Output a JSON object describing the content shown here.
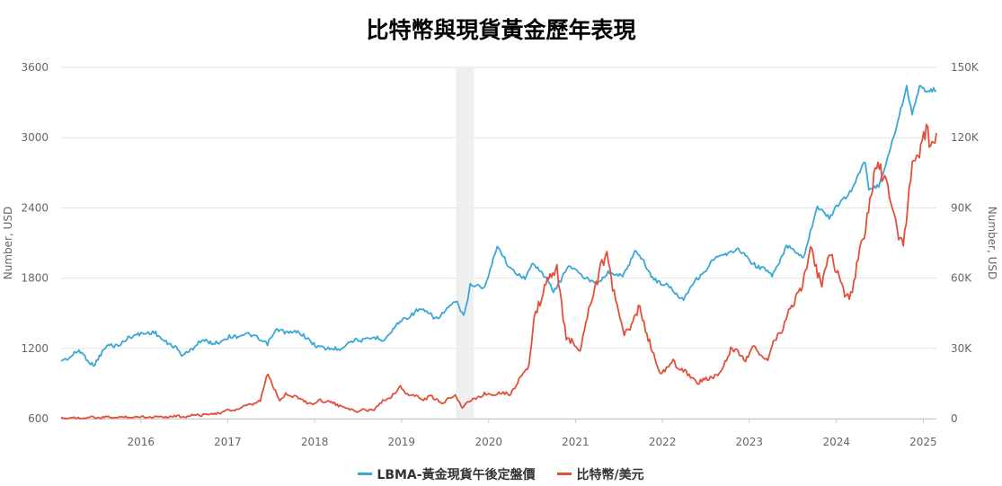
{
  "chart_data": {
    "type": "line",
    "title": "比特幣與現貨黃金歷年表現",
    "x_range": [
      "2015-08-01",
      "2025-08-25"
    ],
    "x_ticks": [
      "2016",
      "2017",
      "2018",
      "2019",
      "2020",
      "2021",
      "2022",
      "2023",
      "2024",
      "2025"
    ],
    "y_left": {
      "label": "Number, USD",
      "range": [
        600,
        3600
      ],
      "ticks": [
        "600",
        "1200",
        "1800",
        "2400",
        "3000",
        "3600"
      ]
    },
    "y_right": {
      "label": "Number, USD",
      "range": [
        0,
        150000
      ],
      "ticks": [
        "0",
        "30K",
        "60K",
        "90K",
        "120K",
        "150K"
      ]
    },
    "grid": true,
    "legend_position": "bottom",
    "shaded_period": [
      "2020-02-15",
      "2020-04-30"
    ],
    "series": [
      {
        "name": "LBMA-黃金現貨午後定盤價",
        "axis": "left",
        "color": "#3aa8d6",
        "points": [
          [
            "2015-08-01",
            1100
          ],
          [
            "2015-10-15",
            1170
          ],
          [
            "2015-12-15",
            1065
          ],
          [
            "2016-02-15",
            1220
          ],
          [
            "2016-04-15",
            1250
          ],
          [
            "2016-07-01",
            1340
          ],
          [
            "2016-09-01",
            1320
          ],
          [
            "2016-11-15",
            1220
          ],
          [
            "2016-12-20",
            1135
          ],
          [
            "2017-03-01",
            1250
          ],
          [
            "2017-06-01",
            1260
          ],
          [
            "2017-09-01",
            1330
          ],
          [
            "2017-12-15",
            1250
          ],
          [
            "2018-01-25",
            1350
          ],
          [
            "2018-04-15",
            1340
          ],
          [
            "2018-08-15",
            1185
          ],
          [
            "2018-11-01",
            1220
          ],
          [
            "2019-01-01",
            1280
          ],
          [
            "2019-04-15",
            1280
          ],
          [
            "2019-06-25",
            1420
          ],
          [
            "2019-09-01",
            1530
          ],
          [
            "2019-12-01",
            1465
          ],
          [
            "2020-02-20",
            1600
          ],
          [
            "2020-03-18",
            1480
          ],
          [
            "2020-04-15",
            1730
          ],
          [
            "2020-06-15",
            1730
          ],
          [
            "2020-08-06",
            2065
          ],
          [
            "2020-10-01",
            1890
          ],
          [
            "2020-12-01",
            1780
          ],
          [
            "2021-01-05",
            1950
          ],
          [
            "2021-03-30",
            1690
          ],
          [
            "2021-06-01",
            1900
          ],
          [
            "2021-09-30",
            1750
          ],
          [
            "2021-11-15",
            1860
          ],
          [
            "2022-01-15",
            1800
          ],
          [
            "2022-03-08",
            2050
          ],
          [
            "2022-05-15",
            1820
          ],
          [
            "2022-09-28",
            1630
          ],
          [
            "2022-11-15",
            1770
          ],
          [
            "2023-01-25",
            1940
          ],
          [
            "2023-05-04",
            2050
          ],
          [
            "2023-08-15",
            1890
          ],
          [
            "2023-10-05",
            1820
          ],
          [
            "2023-12-04",
            2070
          ],
          [
            "2024-02-14",
            1990
          ],
          [
            "2024-04-12",
            2400
          ],
          [
            "2024-06-01",
            2330
          ],
          [
            "2024-08-15",
            2500
          ],
          [
            "2024-10-30",
            2790
          ],
          [
            "2024-11-14",
            2560
          ],
          [
            "2024-12-31",
            2610
          ],
          [
            "2025-02-20",
            2950
          ],
          [
            "2025-04-22",
            3450
          ],
          [
            "2025-05-15",
            3180
          ],
          [
            "2025-06-15",
            3430
          ],
          [
            "2025-08-25",
            3400
          ]
        ]
      },
      {
        "name": "比特幣/美元",
        "axis": "right",
        "color": "#e2503a",
        "points": [
          [
            "2015-08-01",
            260
          ],
          [
            "2016-06-15",
            700
          ],
          [
            "2017-01-01",
            1000
          ],
          [
            "2017-05-25",
            2400
          ],
          [
            "2017-09-01",
            4700
          ],
          [
            "2017-11-15",
            7500
          ],
          [
            "2017-12-17",
            19500
          ],
          [
            "2018-02-05",
            7000
          ],
          [
            "2018-03-01",
            11000
          ],
          [
            "2018-06-29",
            5900
          ],
          [
            "2018-07-25",
            8300
          ],
          [
            "2018-11-20",
            4300
          ],
          [
            "2018-12-15",
            3200
          ],
          [
            "2019-03-01",
            3800
          ],
          [
            "2019-06-26",
            13000
          ],
          [
            "2019-08-01",
            10500
          ],
          [
            "2019-09-25",
            8200
          ],
          [
            "2019-10-26",
            9500
          ],
          [
            "2019-12-17",
            6600
          ],
          [
            "2020-02-12",
            10300
          ],
          [
            "2020-03-13",
            5000
          ],
          [
            "2020-05-15",
            9500
          ],
          [
            "2020-07-25",
            11000
          ],
          [
            "2020-10-01",
            10700
          ],
          [
            "2020-12-17",
            23000
          ],
          [
            "2021-01-08",
            41000
          ],
          [
            "2021-02-21",
            57000
          ],
          [
            "2021-04-14",
            64000
          ],
          [
            "2021-05-23",
            34000
          ],
          [
            "2021-07-20",
            29800
          ],
          [
            "2021-09-07",
            52000
          ],
          [
            "2021-10-20",
            66000
          ],
          [
            "2021-11-10",
            68000
          ],
          [
            "2022-01-22",
            35000
          ],
          [
            "2022-03-28",
            47000
          ],
          [
            "2022-06-18",
            19000
          ],
          [
            "2022-08-15",
            24000
          ],
          [
            "2022-11-21",
            15800
          ],
          [
            "2022-12-31",
            16500
          ],
          [
            "2023-03-10",
            20000
          ],
          [
            "2023-04-14",
            30500
          ],
          [
            "2023-06-15",
            25000
          ],
          [
            "2023-07-14",
            31000
          ],
          [
            "2023-09-11",
            25000
          ],
          [
            "2023-12-08",
            44000
          ],
          [
            "2024-02-28",
            62000
          ],
          [
            "2024-03-14",
            73000
          ],
          [
            "2024-05-01",
            57000
          ],
          [
            "2024-06-07",
            71000
          ],
          [
            "2024-08-05",
            53000
          ],
          [
            "2024-09-06",
            54000
          ],
          [
            "2024-11-13",
            90000
          ],
          [
            "2024-12-17",
            106000
          ],
          [
            "2025-01-20",
            106000
          ],
          [
            "2025-02-28",
            84000
          ],
          [
            "2025-04-08",
            76000
          ],
          [
            "2025-05-22",
            111000
          ],
          [
            "2025-07-14",
            122000
          ],
          [
            "2025-08-01",
            114000
          ],
          [
            "2025-08-25",
            122000
          ]
        ]
      }
    ]
  }
}
